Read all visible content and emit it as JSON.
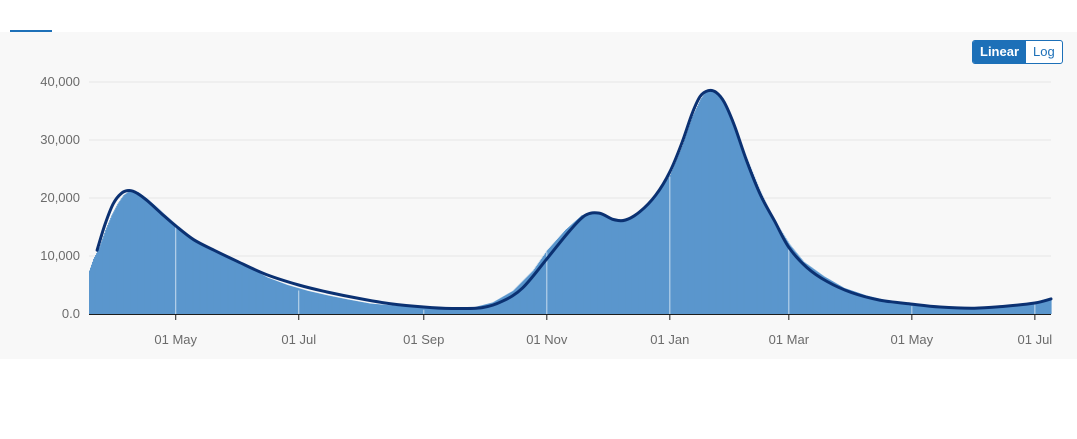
{
  "controls": {
    "scale_options": [
      {
        "label": "Linear",
        "selected": true
      },
      {
        "label": "Log",
        "selected": false
      }
    ]
  },
  "colors": {
    "bars": "#5a96cd",
    "bar_separator": "#c8ddef",
    "average_line": "#0b3172",
    "accent": "#1d70b8",
    "gridline": "#e6e6e6",
    "axis": "#1d1d1d"
  },
  "chart_data": {
    "type": "bar",
    "x_type": "date",
    "x_range": [
      "2020-03-19",
      "2021-07-09"
    ],
    "ylim": [
      0,
      40000
    ],
    "y_ticks": [
      0,
      10000,
      20000,
      30000,
      40000
    ],
    "y_tick_labels": [
      "0.0",
      "10,000",
      "20,000",
      "30,000",
      "40,000"
    ],
    "x_ticks": [
      "2020-05-01",
      "2020-07-01",
      "2020-09-01",
      "2020-11-01",
      "2021-01-01",
      "2021-03-01",
      "2021-05-01",
      "2021-07-01"
    ],
    "x_tick_labels": [
      "01 May",
      "01 Jul",
      "01 Sep",
      "01 Nov",
      "01 Jan",
      "01 Mar",
      "01 May",
      "01 Jul"
    ],
    "grid": true,
    "series": [
      {
        "kind": "bar",
        "points": [
          [
            "2020-03-19",
            7500
          ],
          [
            "2020-03-21",
            9500
          ],
          [
            "2020-03-24",
            11500
          ],
          [
            "2020-03-27",
            14500
          ],
          [
            "2020-03-30",
            17000
          ],
          [
            "2020-04-02",
            19000
          ],
          [
            "2020-04-05",
            20500
          ],
          [
            "2020-04-08",
            21200
          ],
          [
            "2020-04-12",
            21000
          ],
          [
            "2020-04-16",
            20000
          ],
          [
            "2020-04-20",
            18800
          ],
          [
            "2020-04-25",
            17200
          ],
          [
            "2020-05-01",
            15300
          ],
          [
            "2020-05-08",
            13300
          ],
          [
            "2020-05-15",
            11800
          ],
          [
            "2020-05-25",
            10000
          ],
          [
            "2020-06-05",
            8200
          ],
          [
            "2020-06-15",
            6300
          ],
          [
            "2020-06-25",
            5000
          ],
          [
            "2020-07-05",
            4000
          ],
          [
            "2020-07-15",
            3200
          ],
          [
            "2020-07-25",
            2500
          ],
          [
            "2020-08-05",
            1800
          ],
          [
            "2020-08-15",
            1500
          ],
          [
            "2020-08-25",
            1200
          ],
          [
            "2020-09-05",
            1000
          ],
          [
            "2020-09-15",
            900
          ],
          [
            "2020-09-25",
            1100
          ],
          [
            "2020-10-05",
            2000
          ],
          [
            "2020-10-15",
            4000
          ],
          [
            "2020-10-25",
            7500
          ],
          [
            "2020-11-01",
            11000
          ],
          [
            "2020-11-10",
            14500
          ],
          [
            "2020-11-18",
            17000
          ],
          [
            "2020-11-25",
            17500
          ],
          [
            "2020-12-03",
            16500
          ],
          [
            "2020-12-10",
            16200
          ],
          [
            "2020-12-18",
            18000
          ],
          [
            "2020-12-25",
            20500
          ],
          [
            "2021-01-01",
            24000
          ],
          [
            "2021-01-07",
            29000
          ],
          [
            "2021-01-12",
            34000
          ],
          [
            "2021-01-16",
            37000
          ],
          [
            "2021-01-19",
            38500
          ],
          [
            "2021-01-23",
            38500
          ],
          [
            "2021-01-27",
            37000
          ],
          [
            "2021-02-01",
            33500
          ],
          [
            "2021-02-07",
            27500
          ],
          [
            "2021-02-14",
            21500
          ],
          [
            "2021-02-20",
            17000
          ],
          [
            "2021-03-01",
            12000
          ],
          [
            "2021-03-08",
            9000
          ],
          [
            "2021-03-18",
            6500
          ],
          [
            "2021-03-28",
            4500
          ],
          [
            "2021-04-08",
            3200
          ],
          [
            "2021-04-20",
            2200
          ],
          [
            "2021-05-01",
            1700
          ],
          [
            "2021-05-12",
            1300
          ],
          [
            "2021-05-25",
            1000
          ],
          [
            "2021-06-05",
            1100
          ],
          [
            "2021-06-15",
            1400
          ],
          [
            "2021-06-25",
            1700
          ],
          [
            "2021-07-01",
            2000
          ],
          [
            "2021-07-05",
            2500
          ],
          [
            "2021-07-09",
            2700
          ]
        ]
      },
      {
        "kind": "line",
        "points": [
          [
            "2020-03-23",
            11000
          ],
          [
            "2020-03-27",
            15500
          ],
          [
            "2020-03-31",
            19000
          ],
          [
            "2020-04-04",
            20800
          ],
          [
            "2020-04-08",
            21300
          ],
          [
            "2020-04-12",
            20800
          ],
          [
            "2020-04-17",
            19500
          ],
          [
            "2020-04-24",
            17300
          ],
          [
            "2020-05-01",
            15200
          ],
          [
            "2020-05-10",
            12800
          ],
          [
            "2020-05-20",
            11000
          ],
          [
            "2020-06-01",
            9000
          ],
          [
            "2020-06-15",
            6800
          ],
          [
            "2020-07-01",
            5000
          ],
          [
            "2020-07-15",
            3800
          ],
          [
            "2020-08-01",
            2600
          ],
          [
            "2020-08-15",
            1800
          ],
          [
            "2020-09-01",
            1200
          ],
          [
            "2020-09-15",
            950
          ],
          [
            "2020-09-30",
            1100
          ],
          [
            "2020-10-10",
            2200
          ],
          [
            "2020-10-20",
            4500
          ],
          [
            "2020-11-01",
            9500
          ],
          [
            "2020-11-12",
            14200
          ],
          [
            "2020-11-20",
            17000
          ],
          [
            "2020-11-27",
            17400
          ],
          [
            "2020-12-04",
            16300
          ],
          [
            "2020-12-10",
            16200
          ],
          [
            "2020-12-17",
            17600
          ],
          [
            "2020-12-25",
            20500
          ],
          [
            "2021-01-01",
            24500
          ],
          [
            "2021-01-07",
            29500
          ],
          [
            "2021-01-12",
            34500
          ],
          [
            "2021-01-16",
            37500
          ],
          [
            "2021-01-20",
            38500
          ],
          [
            "2021-01-24",
            38200
          ],
          [
            "2021-01-28",
            36500
          ],
          [
            "2021-02-02",
            32500
          ],
          [
            "2021-02-08",
            26500
          ],
          [
            "2021-02-15",
            20500
          ],
          [
            "2021-02-22",
            16000
          ],
          [
            "2021-03-01",
            11500
          ],
          [
            "2021-03-10",
            8000
          ],
          [
            "2021-03-20",
            5600
          ],
          [
            "2021-04-01",
            3700
          ],
          [
            "2021-04-15",
            2400
          ],
          [
            "2021-05-01",
            1700
          ],
          [
            "2021-05-15",
            1200
          ],
          [
            "2021-06-01",
            1000
          ],
          [
            "2021-06-15",
            1300
          ],
          [
            "2021-07-01",
            1900
          ],
          [
            "2021-07-09",
            2600
          ]
        ]
      }
    ]
  }
}
